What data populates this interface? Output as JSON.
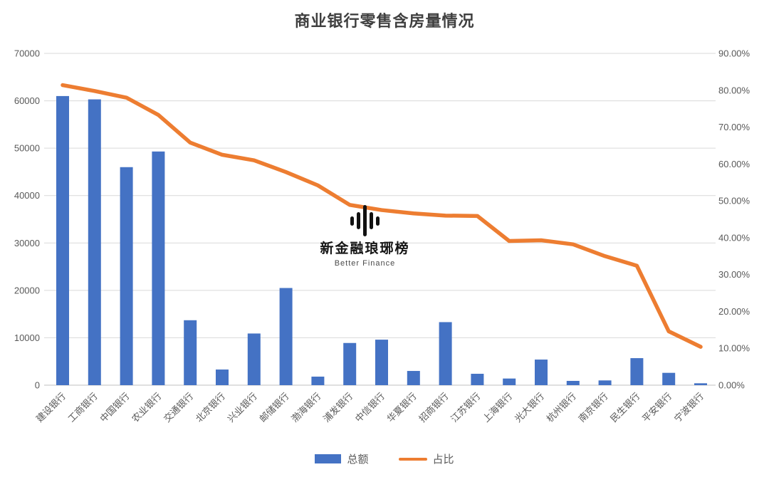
{
  "title": "商业银行零售含房量情况",
  "watermark": {
    "icon": "audio-waveform-icon",
    "brand": "新金融琅琊榜",
    "subtitle": "Better Finance"
  },
  "colors": {
    "bar": "#4472C4",
    "line": "#ED7D31",
    "grid": "#D9D9D9",
    "axis_line": "#BFBFBF",
    "axis_text": "#595959",
    "title_text": "#3F3F3F"
  },
  "chart_data": {
    "type": "combo",
    "title": "商业银行零售含房量情况",
    "categories": [
      "建设银行",
      "工商银行",
      "中国银行",
      "农业银行",
      "交通银行",
      "北京银行",
      "兴业银行",
      "邮储银行",
      "渤海银行",
      "浦发银行",
      "中信银行",
      "华夏银行",
      "招商银行",
      "江苏银行",
      "上海银行",
      "光大银行",
      "杭州银行",
      "南京银行",
      "民生银行",
      "平安银行",
      "宁波银行"
    ],
    "series": [
      {
        "name": "总额",
        "type": "bar",
        "axis": "left",
        "color": "#4472C4",
        "values": [
          61000,
          60300,
          46000,
          49300,
          13700,
          3300,
          10900,
          20500,
          1800,
          8900,
          9600,
          3000,
          13300,
          2400,
          1400,
          5400,
          900,
          1000,
          5700,
          2600,
          400
        ]
      },
      {
        "name": "占比",
        "type": "line",
        "axis": "right",
        "unit": "%",
        "color": "#ED7D31",
        "values": [
          81.4,
          79.8,
          78.0,
          73.3,
          65.8,
          62.5,
          61.0,
          57.8,
          54.2,
          48.9,
          47.5,
          46.6,
          46.0,
          45.9,
          39.1,
          39.3,
          38.2,
          35.0,
          32.4,
          14.6,
          10.4
        ]
      }
    ],
    "left_axis": {
      "min": 0,
      "max": 70000,
      "step": 10000,
      "ticks": [
        "0",
        "10000",
        "20000",
        "30000",
        "40000",
        "50000",
        "60000",
        "70000"
      ]
    },
    "right_axis": {
      "min": 0,
      "max": 90,
      "step": 10,
      "ticks": [
        "0.00%",
        "10.00%",
        "20.00%",
        "30.00%",
        "40.00%",
        "50.00%",
        "60.00%",
        "70.00%",
        "80.00%",
        "90.00%"
      ]
    },
    "grid": true,
    "legend_position": "bottom"
  }
}
